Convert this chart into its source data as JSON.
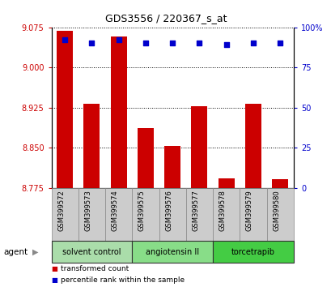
{
  "title": "GDS3556 / 220367_s_at",
  "samples": [
    "GSM399572",
    "GSM399573",
    "GSM399574",
    "GSM399575",
    "GSM399576",
    "GSM399577",
    "GSM399578",
    "GSM399579",
    "GSM399580"
  ],
  "transformed_counts": [
    9.068,
    8.932,
    9.058,
    8.887,
    8.853,
    8.928,
    8.793,
    8.932,
    8.792
  ],
  "percentile_ranks": [
    92,
    90,
    92,
    90,
    90,
    90,
    89,
    90,
    90
  ],
  "ylim_left": [
    8.775,
    9.075
  ],
  "ylim_right": [
    0,
    100
  ],
  "yticks_left": [
    8.775,
    8.85,
    8.925,
    9.0,
    9.075
  ],
  "yticks_right": [
    0,
    25,
    50,
    75,
    100
  ],
  "ytick_labels_right": [
    "0",
    "25",
    "50",
    "75",
    "100%"
  ],
  "bar_color": "#cc0000",
  "dot_color": "#0000cc",
  "bar_bottom": 8.775,
  "groups": [
    {
      "label": "solvent control",
      "indices": [
        0,
        1,
        2
      ],
      "color": "#aaddaa"
    },
    {
      "label": "angiotensin II",
      "indices": [
        3,
        4,
        5
      ],
      "color": "#88dd88"
    },
    {
      "label": "torcetrapib",
      "indices": [
        6,
        7,
        8
      ],
      "color": "#44cc44"
    }
  ],
  "legend_items": [
    {
      "label": "transformed count",
      "color": "#cc0000"
    },
    {
      "label": "percentile rank within the sample",
      "color": "#0000cc"
    }
  ],
  "agent_label": "agent",
  "background_color": "#ffffff",
  "tick_color_left": "#cc0000",
  "tick_color_right": "#0000cc",
  "sample_bg_color": "#cccccc",
  "sample_border_color": "#888888"
}
